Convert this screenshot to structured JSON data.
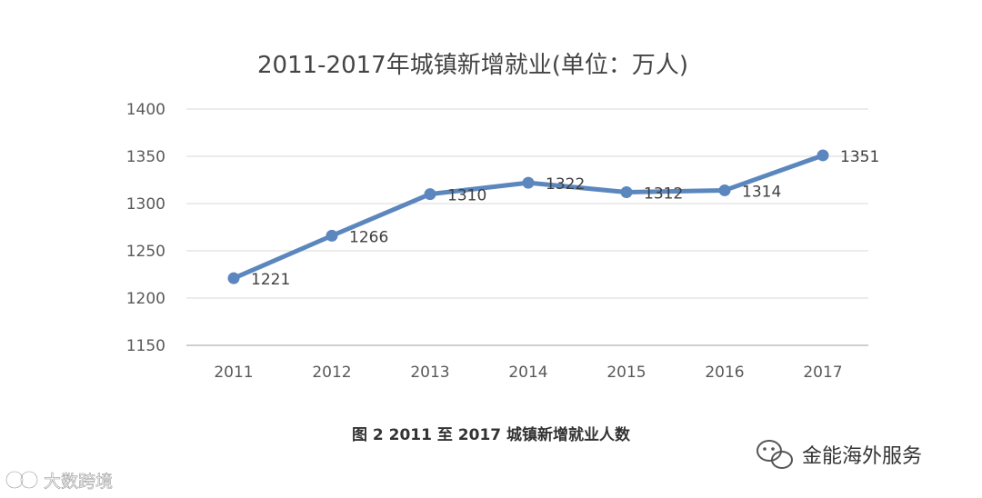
{
  "chart_data": {
    "type": "line",
    "title": "2011-2017年城镇新增就业(单位：万人)",
    "categories": [
      "2011",
      "2012",
      "2013",
      "2014",
      "2015",
      "2016",
      "2017"
    ],
    "series": [
      {
        "values": [
          1221,
          1266,
          1310,
          1322,
          1312,
          1314,
          1351
        ]
      }
    ],
    "ylim": [
      1150,
      1400
    ],
    "yticks": [
      1150,
      1200,
      1250,
      1300,
      1350,
      1400
    ],
    "grid": true,
    "legend": "none",
    "data_labels": true,
    "colors": {
      "line": "#5b87be",
      "grid": "#d9d9d9",
      "axis": "#bfbfbf"
    }
  },
  "caption": "图 2   2011 至 2017 城镇新增就业人数",
  "watermarks": {
    "right": "金能海外服务",
    "left": "大数跨境"
  },
  "icons": {
    "right": "wechat-icon",
    "left": "brand-logo-icon"
  }
}
